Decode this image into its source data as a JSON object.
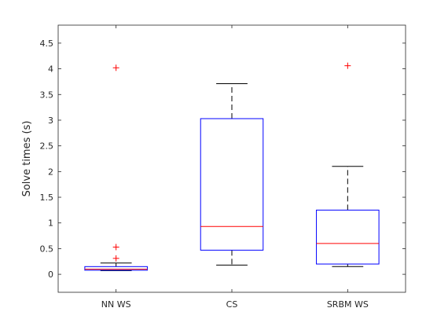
{
  "chart_data": {
    "type": "box",
    "title": "",
    "xlabel": "",
    "ylabel": "Solve times (s)",
    "ylim": [
      -0.35,
      4.85
    ],
    "yticks": [
      0,
      0.5,
      1,
      1.5,
      2,
      2.5,
      3,
      3.5,
      4,
      4.5
    ],
    "ytick_labels": [
      "0",
      "0.5",
      "1",
      "1.5",
      "2",
      "2.5",
      "3",
      "3.5",
      "4",
      "4.5"
    ],
    "grid": false,
    "categories": [
      "NN WS",
      "CS",
      "SRBM WS"
    ],
    "boxes": [
      {
        "name": "NN WS",
        "whisker_low": 0.07,
        "q1": 0.08,
        "median": 0.1,
        "q3": 0.15,
        "whisker_high": 0.22,
        "outliers": [
          4.02,
          0.53,
          0.31
        ]
      },
      {
        "name": "CS",
        "whisker_low": 0.18,
        "q1": 0.47,
        "median": 0.93,
        "q3": 3.03,
        "whisker_high": 3.71,
        "outliers": []
      },
      {
        "name": "SRBM WS",
        "whisker_low": 0.15,
        "q1": 0.2,
        "median": 0.6,
        "q3": 1.25,
        "whisker_high": 2.1,
        "outliers": [
          4.06
        ]
      }
    ],
    "colors": {
      "box": "#0000ff",
      "median": "#ff0000",
      "whisker": "#000000",
      "outlier": "#ff0000"
    }
  }
}
